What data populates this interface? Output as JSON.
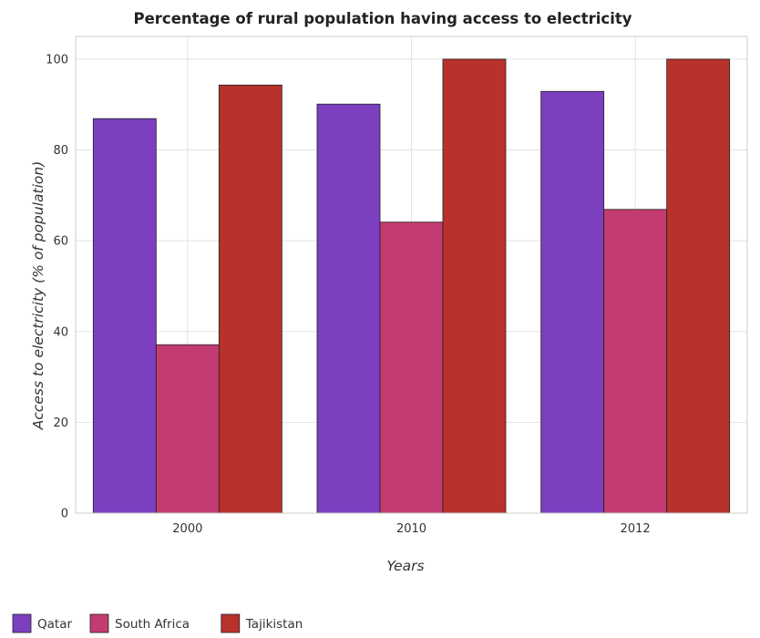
{
  "chart_data": {
    "type": "bar",
    "title": "Percentage of rural population having access to electricity",
    "xlabel": "Years",
    "ylabel": "Access to electricity (% of population)",
    "categories": [
      "2000",
      "2010",
      "2012"
    ],
    "ylim": [
      0,
      105
    ],
    "yticks": [
      0,
      20,
      40,
      60,
      80,
      100
    ],
    "grid": true,
    "legend_position": "bottom-left",
    "series": [
      {
        "name": "Qatar",
        "color": "#7b3fbf",
        "values": [
          86.9,
          90.1,
          92.9
        ]
      },
      {
        "name": "South Africa",
        "color": "#c23b71",
        "values": [
          37.1,
          64.1,
          66.9
        ]
      },
      {
        "name": "Tajikistan",
        "color": "#b8322c",
        "values": [
          94.3,
          100,
          100
        ]
      }
    ]
  }
}
